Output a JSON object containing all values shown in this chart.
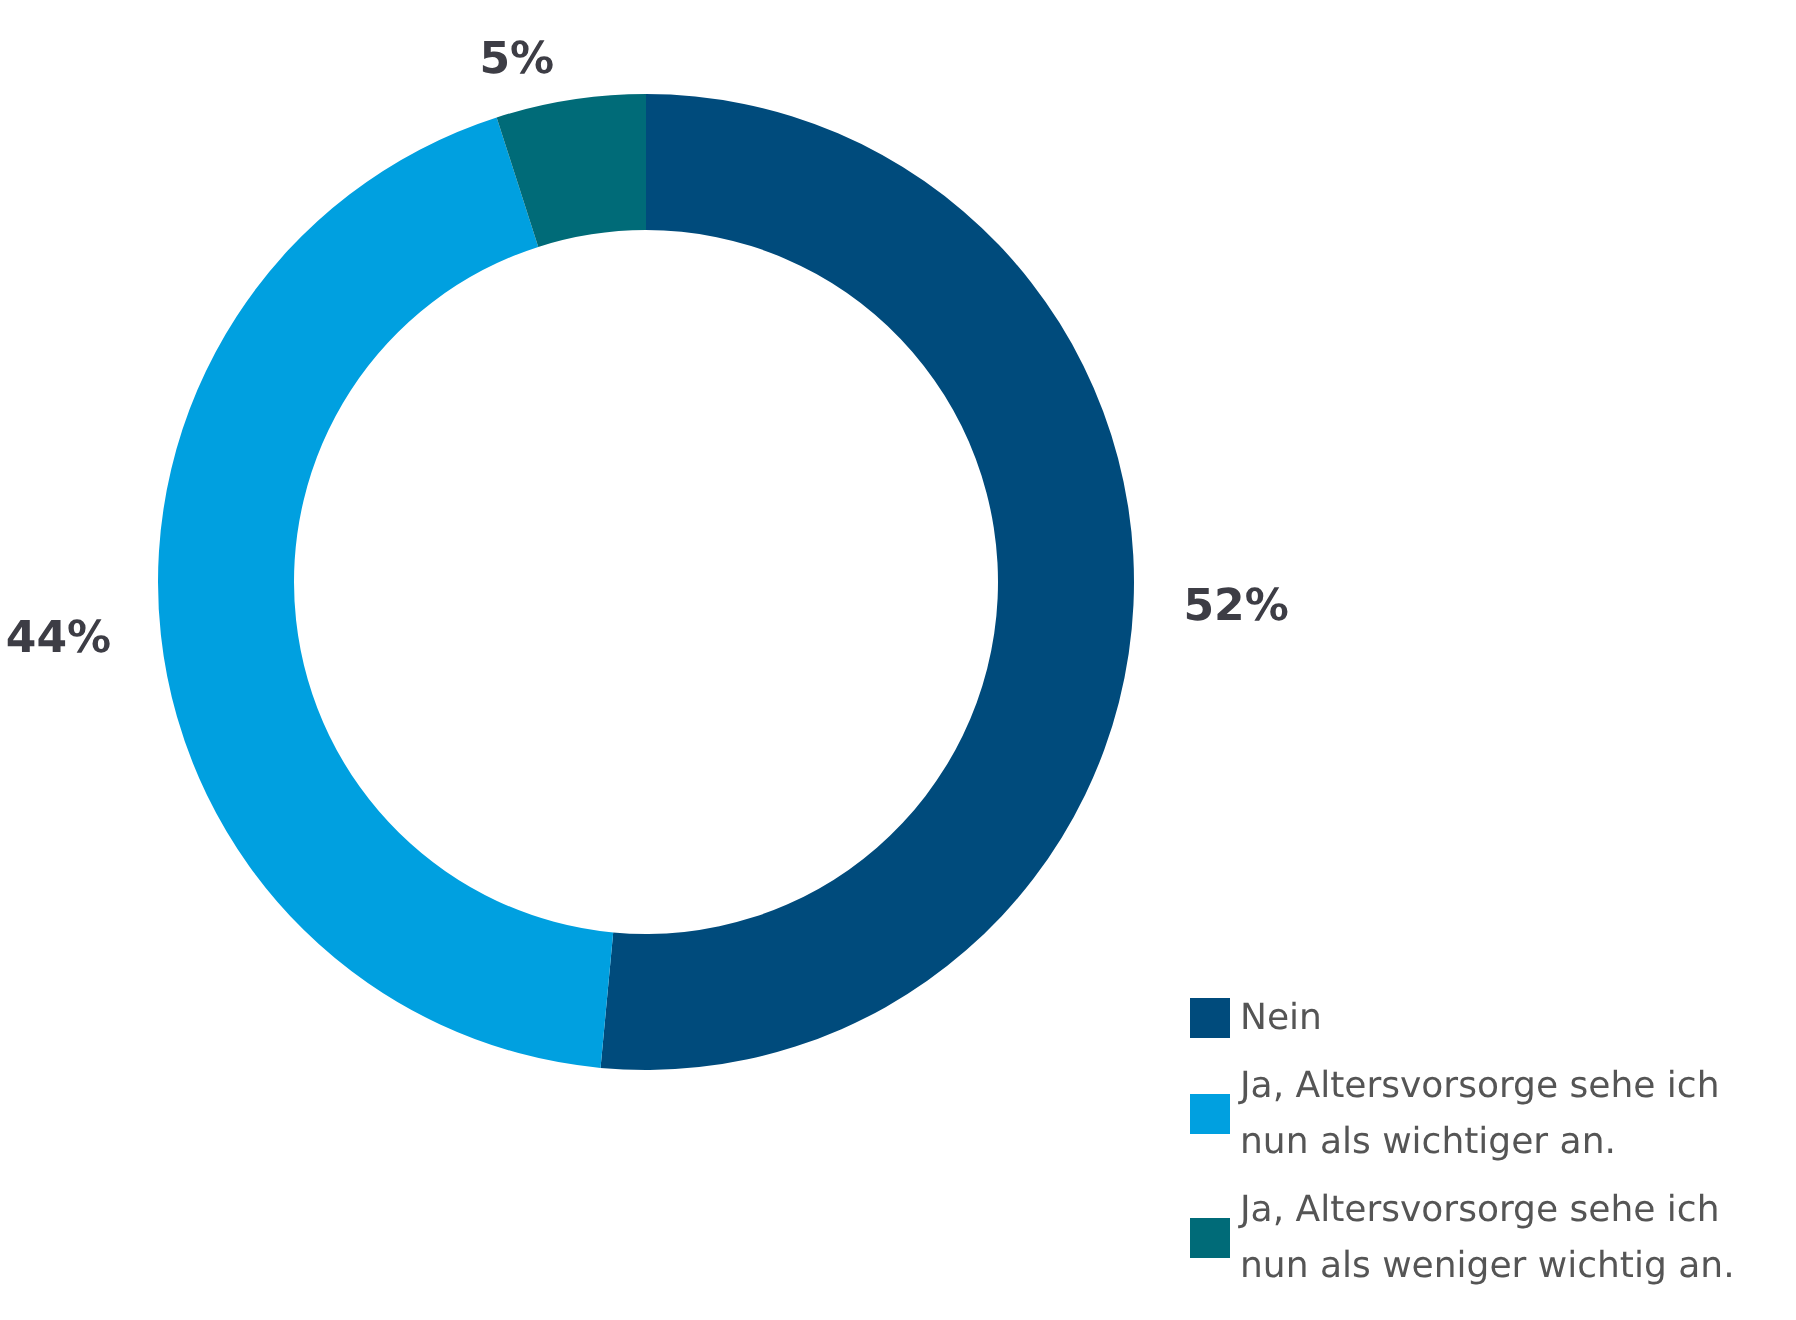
{
  "chart_data": {
    "type": "donut",
    "categories": [
      "Nein",
      "Ja, Altersvorsorge sehe ich nun als wichtiger an.",
      "Ja, Altersvorsorge sehe ich nun als weniger wichtig an."
    ],
    "values": [
      52,
      44,
      5
    ],
    "colors": [
      "#004b7c",
      "#00a0e0",
      "#006b78"
    ],
    "value_labels": [
      "52%",
      "44%",
      "5%"
    ],
    "legend": "bottom right"
  }
}
